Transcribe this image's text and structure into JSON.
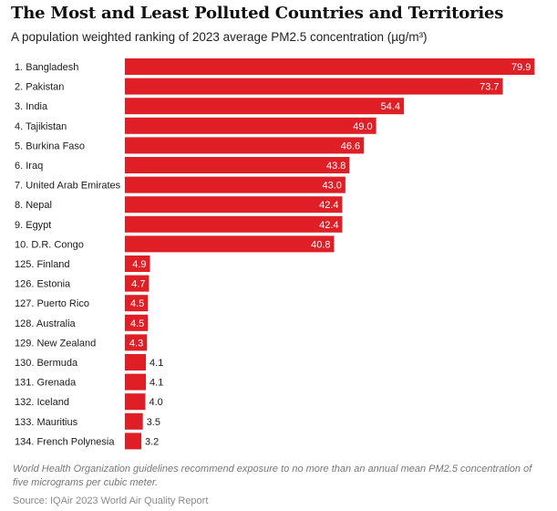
{
  "header": {
    "title": "The Most and Least Polluted Countries and Territories",
    "subtitle": "A population weighted ranking of 2023 average PM2.5 concentration (µg/m³)"
  },
  "footer": {
    "note": "World Health Organization guidelines recommend exposure to no more than an annual mean PM2.5 concentration of five micrograms per cubic meter.",
    "source": "Source: IQAir 2023 World Air Quality Report"
  },
  "colors": {
    "bar": "#e01e26",
    "label_inside": "#ffffff",
    "label_outside": "#1a1a1a"
  },
  "chart_data": {
    "type": "bar",
    "orientation": "horizontal",
    "title": "The Most and Least Polluted Countries and Territories",
    "subtitle": "A population weighted ranking of 2023 average PM2.5 concentration (µg/m³)",
    "xlabel": "",
    "ylabel": "",
    "xlim": [
      0,
      80
    ],
    "grid": false,
    "categories": [
      "1. Bangladesh",
      "2. Pakistan",
      "3. India",
      "4. Tajikistan",
      "5. Burkina Faso",
      "6. Iraq",
      "7. United Arab Emirates",
      "8. Nepal",
      "9. Egypt",
      "10. D.R. Congo",
      "125. Finland",
      "126. Estonia",
      "127. Puerto Rico",
      "128. Australia",
      "129. New Zealand",
      "130. Bermuda",
      "131. Grenada",
      "132. Iceland",
      "133. Mauritius",
      "134. French Polynesia"
    ],
    "values": [
      79.9,
      73.7,
      54.4,
      49.0,
      46.6,
      43.8,
      43.0,
      42.4,
      42.4,
      40.8,
      4.9,
      4.7,
      4.5,
      4.5,
      4.3,
      4.1,
      4.1,
      4.0,
      3.5,
      3.2
    ],
    "value_labels": [
      "79.9",
      "73.7",
      "54.4",
      "49.0",
      "46.6",
      "43.8",
      "43.0",
      "42.4",
      "42.4",
      "40.8",
      "4.9",
      "4.7",
      "4.5",
      "4.5",
      "4.3",
      "4.1",
      "4.1",
      "4.0",
      "3.5",
      "3.2"
    ]
  }
}
